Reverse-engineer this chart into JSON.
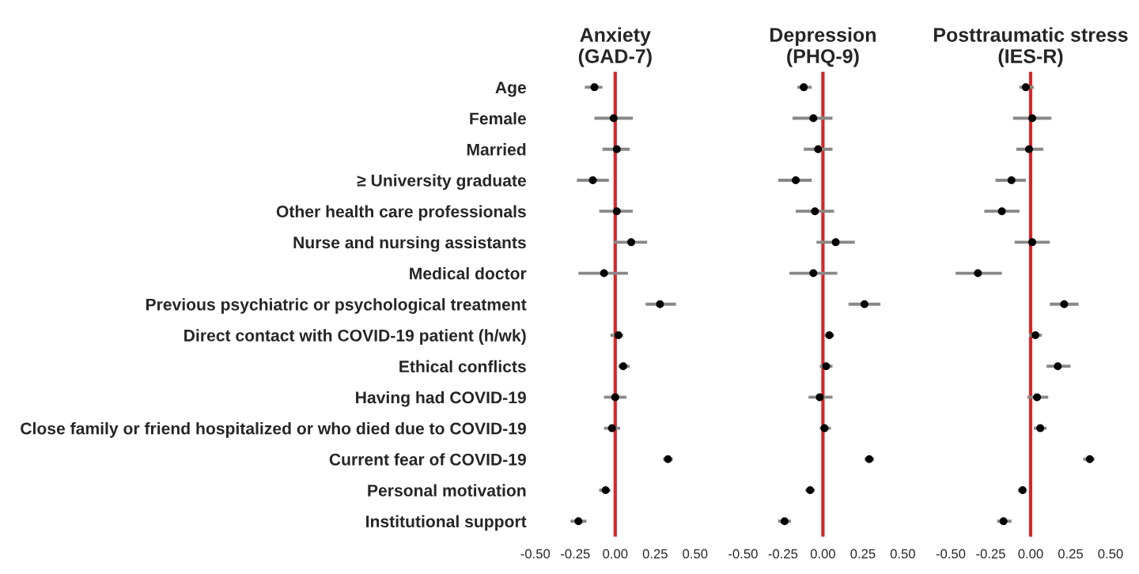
{
  "chart_data": [
    {
      "type": "scatter",
      "title": "Anxiety\n(GAD-7)",
      "orientation": "horizontal",
      "tick_labels": true,
      "marker": "circle",
      "categories": [
        "Age",
        "Female",
        "Married",
        "≥ University graduate",
        "Other health care professionals",
        "Nurse and nursing assistants",
        "Medical doctor",
        "Previous psychiatric or psychological treatment",
        "Direct contact with COVID-19 patient (h/wk)",
        "Ethical conflicts",
        "Having had COVID-19",
        "Close family or friend hospitalized or who died due to COVID-19",
        "Current fear of COVID-19",
        "Personal motivation",
        "Institutional support"
      ],
      "series": [
        {
          "color": "#000000",
          "values": [
            -0.13,
            -0.01,
            0.01,
            -0.14,
            0.01,
            0.1,
            -0.07,
            0.28,
            0.02,
            0.05,
            0.0,
            -0.02,
            0.33,
            -0.06,
            -0.23
          ],
          "errors": [
            [
              -0.19,
              -0.08
            ],
            [
              -0.13,
              0.11
            ],
            [
              -0.08,
              0.09
            ],
            [
              -0.24,
              -0.04
            ],
            [
              -0.1,
              0.11
            ],
            [
              -0.01,
              0.2
            ],
            [
              -0.23,
              0.08
            ],
            [
              0.19,
              0.38
            ],
            [
              -0.03,
              0.05
            ],
            [
              0.02,
              0.09
            ],
            [
              -0.07,
              0.07
            ],
            [
              -0.07,
              0.03
            ],
            [
              0.3,
              0.36
            ],
            [
              -0.1,
              -0.03
            ],
            [
              -0.28,
              -0.18
            ]
          ]
        }
      ],
      "xlim": [
        -0.5,
        0.5
      ],
      "xticks": [
        {
          "value": -0.5,
          "label": "-0.50"
        },
        {
          "value": -0.25,
          "label": "-0.25"
        },
        {
          "value": 0,
          "label": "0.00"
        },
        {
          "value": 0.25,
          "label": "0.25"
        },
        {
          "value": 0.5,
          "label": "0.50"
        }
      ],
      "ref_lines": [
        {
          "axis": "x",
          "value": 0,
          "color": "#d62728"
        }
      ]
    },
    {
      "type": "scatter",
      "title": "Depression\n(PHQ-9)",
      "orientation": "horizontal",
      "tick_labels": "x",
      "marker": "circle",
      "categories": [
        null,
        null,
        null,
        null,
        null,
        null,
        null,
        null,
        null,
        null,
        null,
        null,
        null,
        null,
        null
      ],
      "series": [
        {
          "color": "#000000",
          "values": [
            -0.12,
            -0.06,
            -0.03,
            -0.17,
            -0.05,
            0.08,
            -0.06,
            0.26,
            0.04,
            0.02,
            -0.02,
            0.01,
            0.29,
            -0.08,
            -0.24
          ],
          "errors": [
            [
              -0.16,
              -0.07
            ],
            [
              -0.19,
              0.06
            ],
            [
              -0.12,
              0.06
            ],
            [
              -0.28,
              -0.07
            ],
            [
              -0.17,
              0.07
            ],
            [
              -0.04,
              0.2
            ],
            [
              -0.21,
              0.09
            ],
            [
              0.16,
              0.36
            ],
            [
              0.01,
              0.07
            ],
            [
              -0.02,
              0.06
            ],
            [
              -0.09,
              0.06
            ],
            [
              -0.02,
              0.05
            ],
            [
              0.26,
              0.32
            ],
            [
              -0.11,
              -0.05
            ],
            [
              -0.28,
              -0.2
            ]
          ]
        }
      ],
      "xlim": [
        -0.5,
        0.5
      ],
      "xticks": [
        {
          "value": -0.5,
          "label": "-0.50"
        },
        {
          "value": -0.25,
          "label": "-0.25"
        },
        {
          "value": 0,
          "label": "0.00"
        },
        {
          "value": 0.25,
          "label": "0.25"
        },
        {
          "value": 0.5,
          "label": "0.50"
        }
      ],
      "ref_lines": [
        {
          "axis": "x",
          "value": 0,
          "color": "#d62728"
        }
      ]
    },
    {
      "type": "scatter",
      "title": "Posttraumatic stress\n(IES-R)",
      "orientation": "horizontal",
      "tick_labels": "x",
      "marker": "circle",
      "categories": [
        null,
        null,
        null,
        null,
        null,
        null,
        null,
        null,
        null,
        null,
        null,
        null,
        null,
        null,
        null
      ],
      "series": [
        {
          "color": "#000000",
          "values": [
            -0.03,
            0.01,
            -0.01,
            -0.12,
            -0.18,
            0.01,
            -0.33,
            0.21,
            0.03,
            0.17,
            0.04,
            0.06,
            0.37,
            -0.05,
            -0.17
          ],
          "errors": [
            [
              -0.07,
              0.02
            ],
            [
              -0.11,
              0.13
            ],
            [
              -0.09,
              0.08
            ],
            [
              -0.22,
              -0.03
            ],
            [
              -0.29,
              -0.07
            ],
            [
              -0.1,
              0.12
            ],
            [
              -0.47,
              -0.18
            ],
            [
              0.12,
              0.3
            ],
            [
              -0.01,
              0.07
            ],
            [
              0.1,
              0.25
            ],
            [
              -0.02,
              0.11
            ],
            [
              0.02,
              0.1
            ],
            [
              0.33,
              0.4
            ],
            [
              -0.08,
              -0.03
            ],
            [
              -0.21,
              -0.12
            ]
          ]
        }
      ],
      "xlim": [
        -0.5,
        0.5
      ],
      "xticks": [
        {
          "value": -0.5,
          "label": "-0.50"
        },
        {
          "value": -0.25,
          "label": "-0.25"
        },
        {
          "value": 0,
          "label": "0.00"
        },
        {
          "value": 0.25,
          "label": "0.25"
        },
        {
          "value": 0.5,
          "label": "0.50"
        }
      ],
      "ref_lines": [
        {
          "axis": "x",
          "value": 0,
          "color": "#d62728"
        }
      ]
    }
  ]
}
